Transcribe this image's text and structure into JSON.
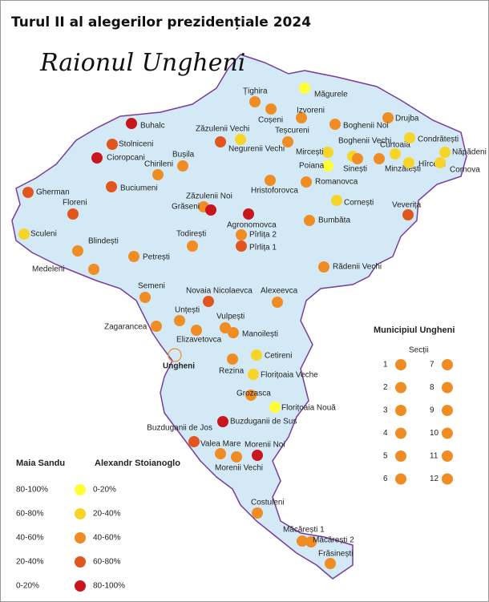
{
  "title": "Turul II al alegerilor prezidențiale 2024",
  "subtitle": "Raionul Ungheni",
  "places": [
    {
      "name": "Țighira",
      "level": 2
    },
    {
      "name": "Coșeni",
      "level": 2
    },
    {
      "name": "Măgurele",
      "level": 0
    },
    {
      "name": "Izvoreni",
      "level": 2
    },
    {
      "name": "Drujba",
      "level": 2
    },
    {
      "name": "Boghenii Noi",
      "level": 2
    },
    {
      "name": "Buhalc",
      "level": 4
    },
    {
      "name": "Stolniceni",
      "level": 3
    },
    {
      "name": "Cioropcani",
      "level": 4
    },
    {
      "name": "Zăzulenii Vechi",
      "level": 3
    },
    {
      "name": "Negurenii Vechi",
      "level": 1
    },
    {
      "name": "Teșcureni",
      "level": 2
    },
    {
      "name": "Boghenii Vechi",
      "level": 1
    },
    {
      "name": "Mircești",
      "level": 1
    },
    {
      "name": "Curtoaia",
      "level": 1
    },
    {
      "name": "Condrătești",
      "level": 1
    },
    {
      "name": "Năpădeni",
      "level": 1
    },
    {
      "name": "Poiana",
      "level": 0
    },
    {
      "name": "Sinești",
      "level": 2
    },
    {
      "name": "Minzătești",
      "level": 2
    },
    {
      "name": "Hîrcești",
      "level": 1
    },
    {
      "name": "Cornova",
      "level": 1
    },
    {
      "name": "Bușila",
      "level": 2
    },
    {
      "name": "Chirileni",
      "level": 2
    },
    {
      "name": "Buciumeni",
      "level": 3
    },
    {
      "name": "Gherman",
      "level": 3
    },
    {
      "name": "Hristoforovca",
      "level": 2
    },
    {
      "name": "Romanovca",
      "level": 2
    },
    {
      "name": "Floreni",
      "level": 3
    },
    {
      "name": "Grăseni",
      "level": 2
    },
    {
      "name": "Zăzulenii Noi",
      "level": 4
    },
    {
      "name": "Agronomovca",
      "level": 4
    },
    {
      "name": "Cornești",
      "level": 1
    },
    {
      "name": "Veverița",
      "level": 3
    },
    {
      "name": "Sculeni",
      "level": 1
    },
    {
      "name": "Bumbăta",
      "level": 2
    },
    {
      "name": "Todirești",
      "level": 2
    },
    {
      "name": "Pîrlița 2",
      "level": 2
    },
    {
      "name": "Pîrlița 1",
      "level": 3
    },
    {
      "name": "Blindești",
      "level": 2
    },
    {
      "name": "Petrești",
      "level": 2
    },
    {
      "name": "Medeleni",
      "level": 2
    },
    {
      "name": "Rădenii Vechi",
      "level": 2
    },
    {
      "name": "Semeni",
      "level": 2
    },
    {
      "name": "Novaia Nicolaevca",
      "level": 3
    },
    {
      "name": "Alexeevca",
      "level": 2
    },
    {
      "name": "Unțești",
      "level": 2
    },
    {
      "name": "Vulpești",
      "level": 2
    },
    {
      "name": "Zagarancea",
      "level": 2
    },
    {
      "name": "Elizavetovca",
      "level": 2
    },
    {
      "name": "Manoilești",
      "level": 2
    },
    {
      "name": "Rezina",
      "level": 2
    },
    {
      "name": "Cetireni",
      "level": 1
    },
    {
      "name": "Florițoaia Veche",
      "level": 1
    },
    {
      "name": "Grozasca",
      "level": 2
    },
    {
      "name": "Florițoaia Nouă",
      "level": 0
    },
    {
      "name": "Buzduganii de Sus",
      "level": 4
    },
    {
      "name": "Buzduganii de Jos",
      "level": 3
    },
    {
      "name": "Valea Mare",
      "level": 2
    },
    {
      "name": "Morenii Noi",
      "level": 4
    },
    {
      "name": "Morenii Vechi",
      "level": 2
    },
    {
      "name": "Costuleni",
      "level": 2
    },
    {
      "name": "Măcărești 1",
      "level": 2
    },
    {
      "name": "Măcărești 2",
      "level": 2
    },
    {
      "name": "Frăsinești",
      "level": 2
    },
    {
      "name": "Ungheni"
    }
  ],
  "municipality": {
    "title": "Municipiul Ungheni",
    "subtitle": "Secții",
    "sections": [
      {
        "label": "1",
        "level": 2
      },
      {
        "label": "2",
        "level": 2
      },
      {
        "label": "3",
        "level": 2
      },
      {
        "label": "4",
        "level": 2
      },
      {
        "label": "5",
        "level": 2
      },
      {
        "label": "6",
        "level": 2
      },
      {
        "label": "7",
        "level": 2
      },
      {
        "label": "8",
        "level": 2
      },
      {
        "label": "9",
        "level": 2
      },
      {
        "label": "10",
        "level": 2
      },
      {
        "label": "11",
        "level": 2
      },
      {
        "label": "12",
        "level": 2
      }
    ]
  },
  "legend": {
    "headers": [
      "Maia Sandu",
      "Alexandr Stoianoglo"
    ],
    "levels": [
      {
        "sandu": "80-100%",
        "stoianoglo": "0-20%",
        "color": "#ffff33"
      },
      {
        "sandu": "60-80%",
        "stoianoglo": "20-40%",
        "color": "#f7d528"
      },
      {
        "sandu": "40-60%",
        "stoianoglo": "40-60%",
        "color": "#f08c24"
      },
      {
        "sandu": "20-40%",
        "stoianoglo": "60-80%",
        "color": "#e0561e"
      },
      {
        "sandu": "0-20%",
        "stoianoglo": "80-100%",
        "color": "#c8161e"
      }
    ]
  }
}
